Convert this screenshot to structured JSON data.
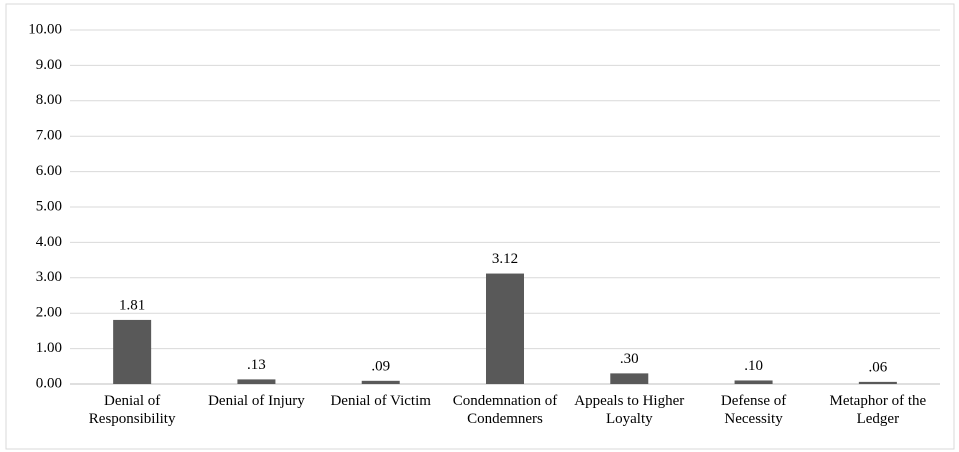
{
  "chart_data": {
    "type": "bar",
    "categories": [
      "Denial of Responsibility",
      "Denial of Injury",
      "Denial of Victim",
      "Condemnation of Condemners",
      "Appeals to Higher Loyalty",
      "Defense of Necessity",
      "Metaphor of the Ledger"
    ],
    "values": [
      1.81,
      0.13,
      0.09,
      3.12,
      0.3,
      0.1,
      0.06
    ],
    "value_labels": [
      "1.81",
      ".13",
      ".09",
      "3.12",
      ".30",
      ".10",
      ".06"
    ],
    "color": "#595959",
    "ylim": [
      0,
      10
    ],
    "yticks": [
      {
        "value": 0,
        "label": "0.00"
      },
      {
        "value": 1,
        "label": "1.00"
      },
      {
        "value": 2,
        "label": "2.00"
      },
      {
        "value": 3,
        "label": "3.00"
      },
      {
        "value": 4,
        "label": "4.00"
      },
      {
        "value": 5,
        "label": "5.00"
      },
      {
        "value": 6,
        "label": "6.00"
      },
      {
        "value": 7,
        "label": "7.00"
      },
      {
        "value": 8,
        "label": "8.00"
      },
      {
        "value": 9,
        "label": "9.00"
      },
      {
        "value": 10,
        "label": "10.00"
      }
    ],
    "grid": true
  }
}
